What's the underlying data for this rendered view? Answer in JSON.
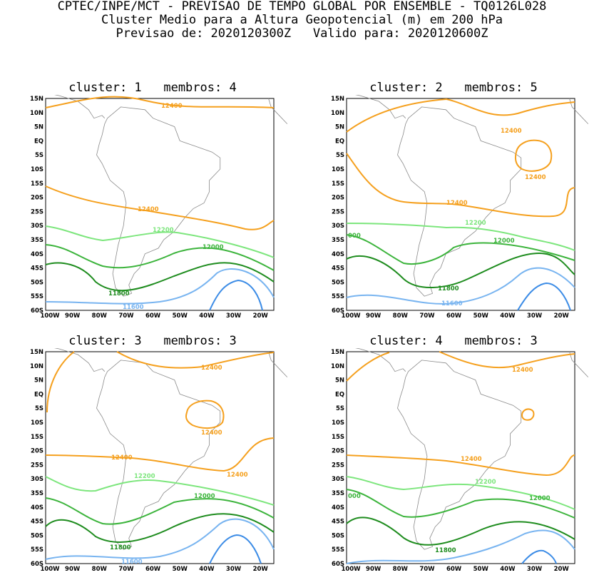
{
  "header": {
    "line1": "CPTEC/INPE/MCT - PREVISAO DE TEMPO GLOBAL POR ENSEMBLE - TQ0126L028",
    "line2": "Cluster Medio para a Altura Geopotencial (m) em 200 hPa",
    "line3": "Previsao de: 2020120300Z   Valido para: 2020120600Z"
  },
  "axes": {
    "lat_labels": [
      "15N",
      "10N",
      "5N",
      "EQ",
      "5S",
      "10S",
      "15S",
      "20S",
      "25S",
      "30S",
      "35S",
      "40S",
      "45S",
      "50S",
      "55S",
      "60S"
    ],
    "lon_labels": [
      "100W",
      "90W",
      "80W",
      "70W",
      "60W",
      "50W",
      "40W",
      "30W",
      "20W"
    ]
  },
  "colors": {
    "c12400": "#f5a01e",
    "c12200": "#7de67d",
    "c12000": "#3cb43c",
    "c11800": "#1e8c1e",
    "c11600": "#78b4f0",
    "c11400": "#3c8ce6",
    "coast": "#8a8a8a"
  },
  "panels": [
    {
      "title": "cluster: 1   membros: 4",
      "labels": {
        "a": "12400",
        "b": "12400",
        "c": "12200",
        "d": "12000",
        "e": "11800",
        "f": "11600"
      }
    },
    {
      "title": "cluster: 2   membros: 5",
      "labels": {
        "a": "12400",
        "b": "12400",
        "c": "12400",
        "d": "12200",
        "e": "12000",
        "f": "000",
        "g": "11800",
        "h": "11600"
      }
    },
    {
      "title": "cluster: 3   membros: 3",
      "labels": {
        "a": "12400",
        "b": "12400",
        "c": "12400",
        "d": "12400",
        "e": "12200",
        "f": "12000",
        "g": "11800",
        "h": "11600"
      }
    },
    {
      "title": "cluster: 4   membros: 3",
      "labels": {
        "a": "12400",
        "b": "12400",
        "c": "12200",
        "d": "12000",
        "e": "000",
        "f": "11800"
      }
    }
  ]
}
